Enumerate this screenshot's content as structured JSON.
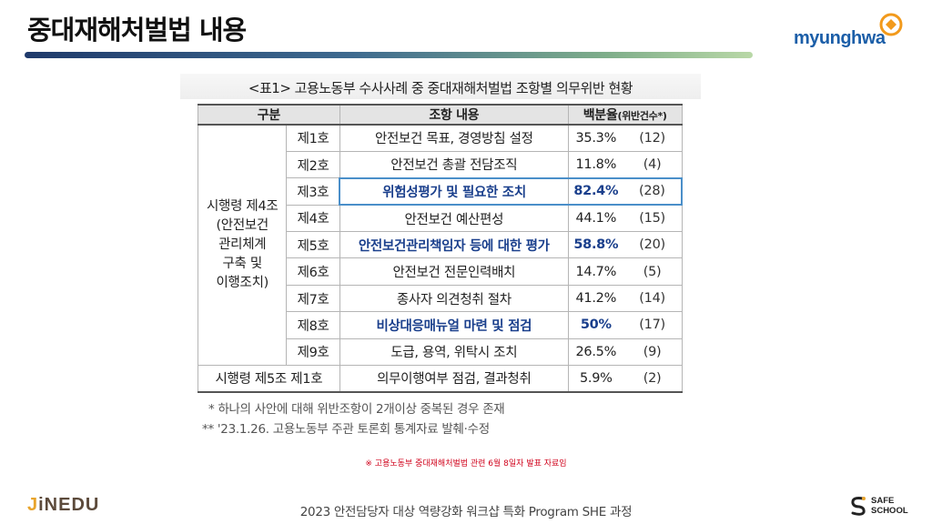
{
  "header": {
    "title": "중대재해처벌법 내용",
    "logo_text": "myunghwa"
  },
  "table": {
    "caption": "<표1> 고용노동부 수사사례 중 중대재해처벌법 조항별 의무위반 현황",
    "headers": {
      "category": "구분",
      "content": "조항 내용",
      "percent": "백분율",
      "percent_note": "(위반건수*)"
    },
    "group_label_lines": [
      "시행령 제4조",
      "(안전보건",
      "관리체계",
      "구축 및",
      "이행조치)"
    ],
    "rows": [
      {
        "num": "제1호",
        "content": "안전보건 목표, 경영방침 설정",
        "percent": "35.3%",
        "count": "(12)"
      },
      {
        "num": "제2호",
        "content": "안전보건 총괄 전담조직",
        "percent": "11.8%",
        "count": "(4)"
      },
      {
        "num": "제3호",
        "content": "위험성평가 및 필요한 조치",
        "percent": "82.4%",
        "count": "(28)"
      },
      {
        "num": "제4호",
        "content": "안전보건 예산편성",
        "percent": "44.1%",
        "count": "(15)"
      },
      {
        "num": "제5호",
        "content": "안전보건관리책임자 등에 대한 평가",
        "percent": "58.8%",
        "count": "(20)"
      },
      {
        "num": "제6호",
        "content": "안전보건 전문인력배치",
        "percent": "14.7%",
        "count": "(5)"
      },
      {
        "num": "제7호",
        "content": "종사자 의견청취 절차",
        "percent": "41.2%",
        "count": "(14)"
      },
      {
        "num": "제8호",
        "content": "비상대응매뉴얼 마련 및 점검",
        "percent": "50%",
        "count": "(17)"
      },
      {
        "num": "제9호",
        "content": "도급, 용역, 위탁시 조치",
        "percent": "26.5%",
        "count": "(9)"
      }
    ],
    "last_row": {
      "label": "시행령 제5조 제1호",
      "content": "의무이행여부 점검, 결과청취",
      "percent": "5.9%",
      "count": "(2)"
    },
    "highlight_color": "#1a3f8c",
    "box_color": "#4a8fc9"
  },
  "footnotes": [
    "* 하나의 사안에 대해 위반조항이 2개이상 중복된 경우 존재",
    "** '23.1.26. 고용노동부 주관 토론회 통계자료 발췌·수정"
  ],
  "notice": "※ 고용노동부 중대재해처벌법 관련 6월 8일자 발표 자료임",
  "footer": {
    "left_brand_accent": "J",
    "left_brand_rest": "iNEDU",
    "center": "2023 안전담당자 대상 역량강화 워크샵 특화 Program SHE 과정",
    "right_line1": "SAFE",
    "right_line2": "SCHOOL"
  }
}
